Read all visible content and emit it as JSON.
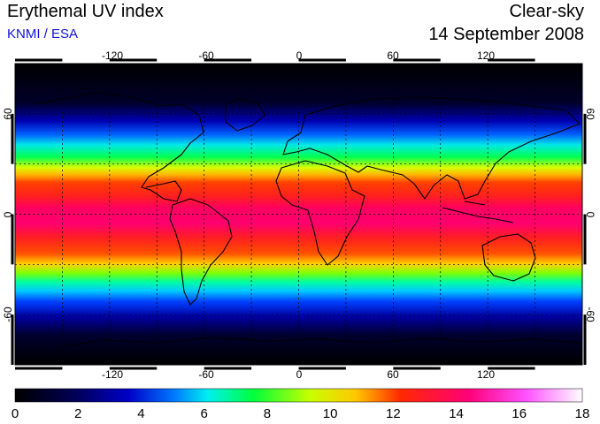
{
  "header": {
    "title": "Erythemal UV index",
    "credit": "KNMI / ESA",
    "mode": "Clear-sky",
    "date": "14 September 2008"
  },
  "map": {
    "lon_range": [
      -180,
      180
    ],
    "lat_range": [
      -90,
      90
    ],
    "lon_ticks": [
      "-120",
      "-60",
      "0",
      "60",
      "120"
    ],
    "lat_ticks": [
      "60",
      "0",
      "-60"
    ],
    "grid": "dashed 30° graticule"
  },
  "colorbar": {
    "min": 0,
    "max": 18,
    "labels": [
      "0",
      "2",
      "4",
      "6",
      "8",
      "10",
      "12",
      "14",
      "16",
      "18"
    ],
    "colors": [
      "#000000",
      "#000050",
      "#0000c8",
      "#0078ff",
      "#00f0f0",
      "#00ff3c",
      "#c8ff00",
      "#ffc800",
      "#ff2800",
      "#ff0078",
      "#ff50ff",
      "#ffffff"
    ]
  }
}
